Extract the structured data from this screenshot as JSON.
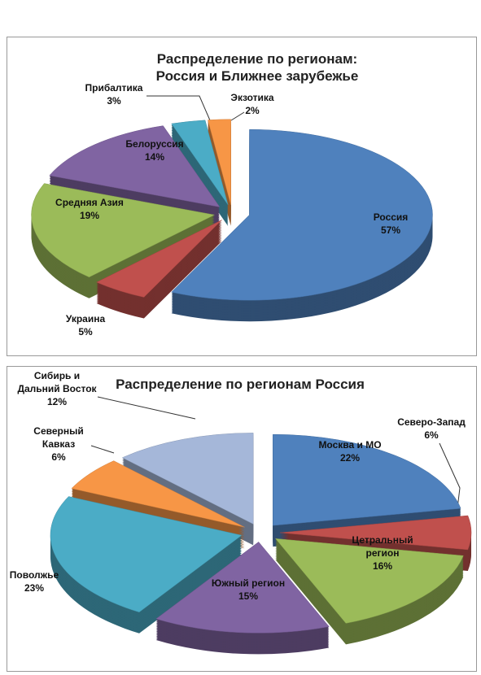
{
  "chart_data": [
    {
      "type": "pie",
      "title": "Распределение по регионам: Россия и Ближнее зарубежье",
      "categories": [
        "Россия",
        "Украина",
        "Средняя Азия",
        "Белоруссия",
        "Прибалтика",
        "Экзотика"
      ],
      "values": [
        57,
        5,
        19,
        14,
        3,
        2
      ],
      "value_labels": [
        "57%",
        "5%",
        "19%",
        "14%",
        "3%",
        "2%"
      ],
      "colors": [
        "#4f81bd",
        "#c0504d",
        "#9bbb59",
        "#8064a2",
        "#4bacc6",
        "#f79646"
      ]
    },
    {
      "type": "pie",
      "title": "Распределение по регионам Россия",
      "categories": [
        "Москва и МО",
        "Северо-Запад",
        "Цетральный регион",
        "Южный регион",
        "Поволжье",
        "Северный Кавказ",
        "Сибирь и Дальний Восток"
      ],
      "values": [
        22,
        6,
        16,
        15,
        23,
        6,
        12
      ],
      "value_labels": [
        "22%",
        "6%",
        "16%",
        "15%",
        "23%",
        "6%",
        "12%"
      ],
      "colors": [
        "#4f81bd",
        "#c0504d",
        "#9bbb59",
        "#8064a2",
        "#4bacc6",
        "#f79646",
        "#a5b7d9"
      ]
    }
  ]
}
